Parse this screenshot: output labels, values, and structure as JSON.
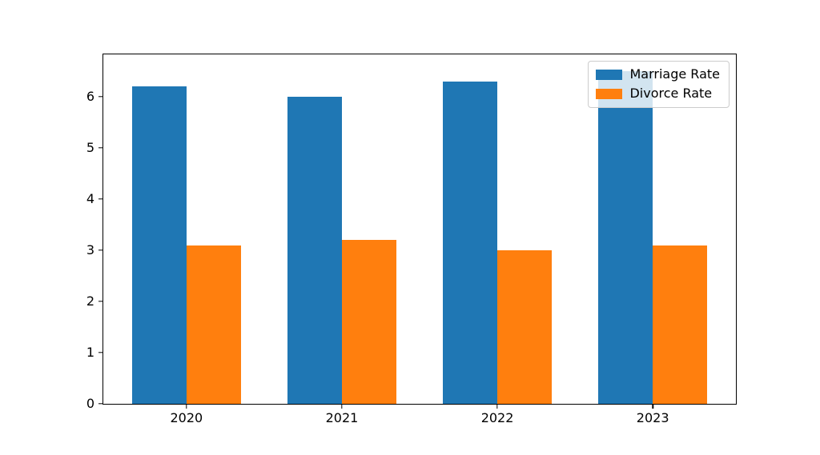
{
  "chart_data": {
    "type": "bar",
    "title": "",
    "xlabel": "",
    "ylabel": "",
    "categories": [
      "2020",
      "2021",
      "2022",
      "2023"
    ],
    "series": [
      {
        "name": "Marriage Rate",
        "color": "#1f77b4",
        "values": [
          6.2,
          6.0,
          6.3,
          6.5
        ]
      },
      {
        "name": "Divorce Rate",
        "color": "#ff7f0e",
        "values": [
          3.1,
          3.2,
          3.0,
          3.1
        ]
      }
    ],
    "bar_width": 0.35,
    "xlim": [
      -0.535,
      3.535
    ],
    "ylim": [
      0,
      6.825
    ],
    "yticks": [
      0,
      1,
      2,
      3,
      4,
      5,
      6
    ],
    "grid": false,
    "legend": {
      "position": "upper right",
      "entries": [
        "Marriage Rate",
        "Divorce Rate"
      ]
    }
  },
  "colors": {
    "figure_background": "#ffffff",
    "axes_edge": "#000000",
    "tick_label": "#000000",
    "legend_border": "#cccccc",
    "legend_background": "rgba(255,255,255,0.8)",
    "series_blue": "#1f77b4",
    "series_orange": "#ff7f0e"
  }
}
